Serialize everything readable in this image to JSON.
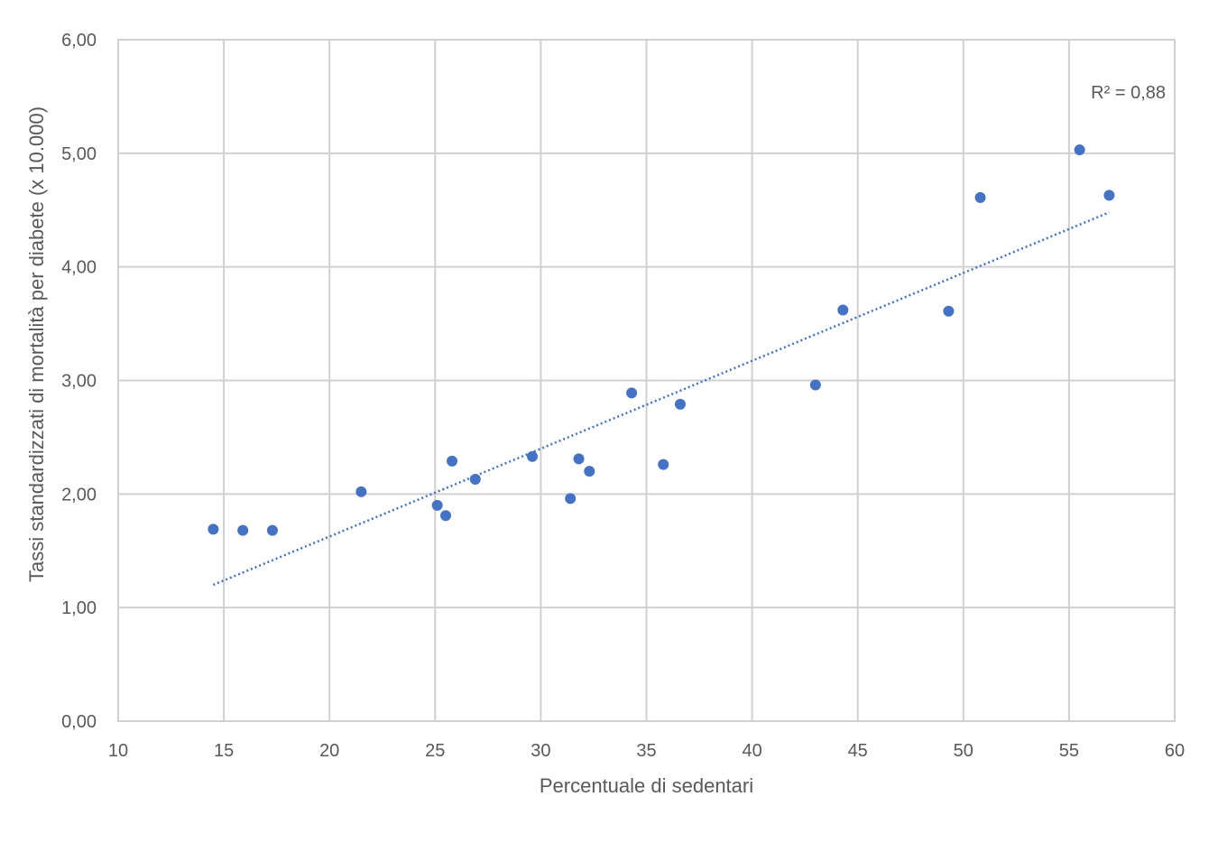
{
  "chart_data": {
    "type": "scatter",
    "title": "",
    "xlabel": "Percentuale di sedentari",
    "ylabel": "Tassi standardizzati di mortalità per diabete (x 10.000)",
    "xlim": [
      10,
      60
    ],
    "ylim": [
      0,
      6
    ],
    "x_ticks": [
      10,
      15,
      20,
      25,
      30,
      35,
      40,
      45,
      50,
      55,
      60
    ],
    "x_tick_labels": [
      "10",
      "15",
      "20",
      "25",
      "30",
      "35",
      "40",
      "45",
      "50",
      "55",
      "60"
    ],
    "y_ticks": [
      0,
      1,
      2,
      3,
      4,
      5,
      6
    ],
    "y_tick_labels": [
      "0,00",
      "1,00",
      "2,00",
      "3,00",
      "4,00",
      "5,00",
      "6,00"
    ],
    "grid": true,
    "point_color": "#4472C4",
    "points": [
      {
        "x": 14.5,
        "y": 1.69
      },
      {
        "x": 15.9,
        "y": 1.68
      },
      {
        "x": 17.3,
        "y": 1.68
      },
      {
        "x": 21.5,
        "y": 2.02
      },
      {
        "x": 25.1,
        "y": 1.9
      },
      {
        "x": 25.5,
        "y": 1.81
      },
      {
        "x": 25.8,
        "y": 2.29
      },
      {
        "x": 26.9,
        "y": 2.13
      },
      {
        "x": 29.6,
        "y": 2.33
      },
      {
        "x": 31.4,
        "y": 1.96
      },
      {
        "x": 31.8,
        "y": 2.31
      },
      {
        "x": 32.3,
        "y": 2.2
      },
      {
        "x": 34.3,
        "y": 2.89
      },
      {
        "x": 35.8,
        "y": 2.26
      },
      {
        "x": 36.6,
        "y": 2.79
      },
      {
        "x": 43.0,
        "y": 2.96
      },
      {
        "x": 44.3,
        "y": 3.62
      },
      {
        "x": 49.3,
        "y": 3.61
      },
      {
        "x": 50.8,
        "y": 4.61
      },
      {
        "x": 55.5,
        "y": 5.03
      },
      {
        "x": 56.9,
        "y": 4.63
      }
    ],
    "trendline": {
      "type": "linear",
      "style": "dotted",
      "x_start": 14.5,
      "x_end": 56.9,
      "y_start": 1.2,
      "y_end": 4.48,
      "label": "R² = 0,88"
    }
  }
}
